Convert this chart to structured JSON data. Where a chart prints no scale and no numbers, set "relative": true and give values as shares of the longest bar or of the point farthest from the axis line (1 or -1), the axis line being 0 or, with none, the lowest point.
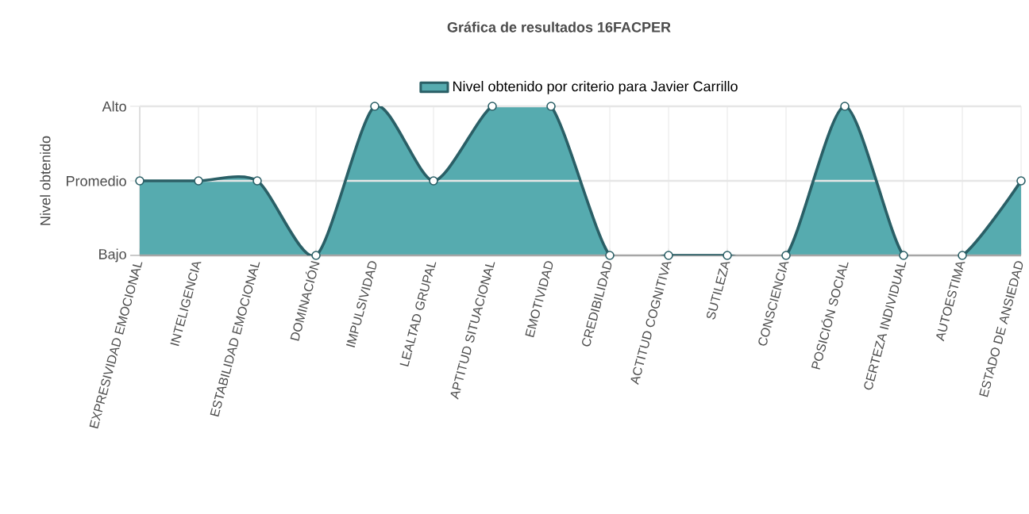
{
  "chart_data": {
    "type": "area",
    "title": "Gráfica de resultados 16FACPER",
    "ylabel": "Nivel obtenido",
    "categories": [
      "EXPRESIVIDAD EMOCIONAL",
      "INTELIGENCIA",
      "ESTABILIDAD EMOCIONAL",
      "DOMINACIÓN",
      "IMPULSIVIDAD",
      "LEALTAD GRUPAL",
      "APTITUD SITUACIONAL",
      "EMOTIVIDAD",
      "CREDIBILIDAD",
      "ACTITUD COGNITIVA",
      "SUTILEZA",
      "CONSCIENCIA",
      "POSICIÓN SOCIAL",
      "CERTEZA INDIVIDUAL",
      "AUTOESTIMA",
      "ESTADO DE ANSIEDAD"
    ],
    "series": [
      {
        "name": "Nivel obtenido por criterio para Javier Carrillo",
        "color": "#2a5f66",
        "values": [
          0.5,
          0.5,
          0.5,
          0,
          1,
          0.5,
          1,
          1,
          0,
          0,
          0,
          0,
          1,
          0,
          0,
          0.5
        ]
      }
    ],
    "relative": true,
    "ref_lines": [
      {
        "axis": "y",
        "value": 0,
        "label": "Bajo",
        "color": "#a6a6a6"
      },
      {
        "axis": "y",
        "value": 0.5,
        "label": "Promedio",
        "color": "#e6e6e6"
      },
      {
        "axis": "y",
        "value": 1,
        "label": "Alto",
        "color": "#e6e6e6"
      }
    ],
    "grid": "x",
    "legend": "top",
    "marker": "circle"
  }
}
